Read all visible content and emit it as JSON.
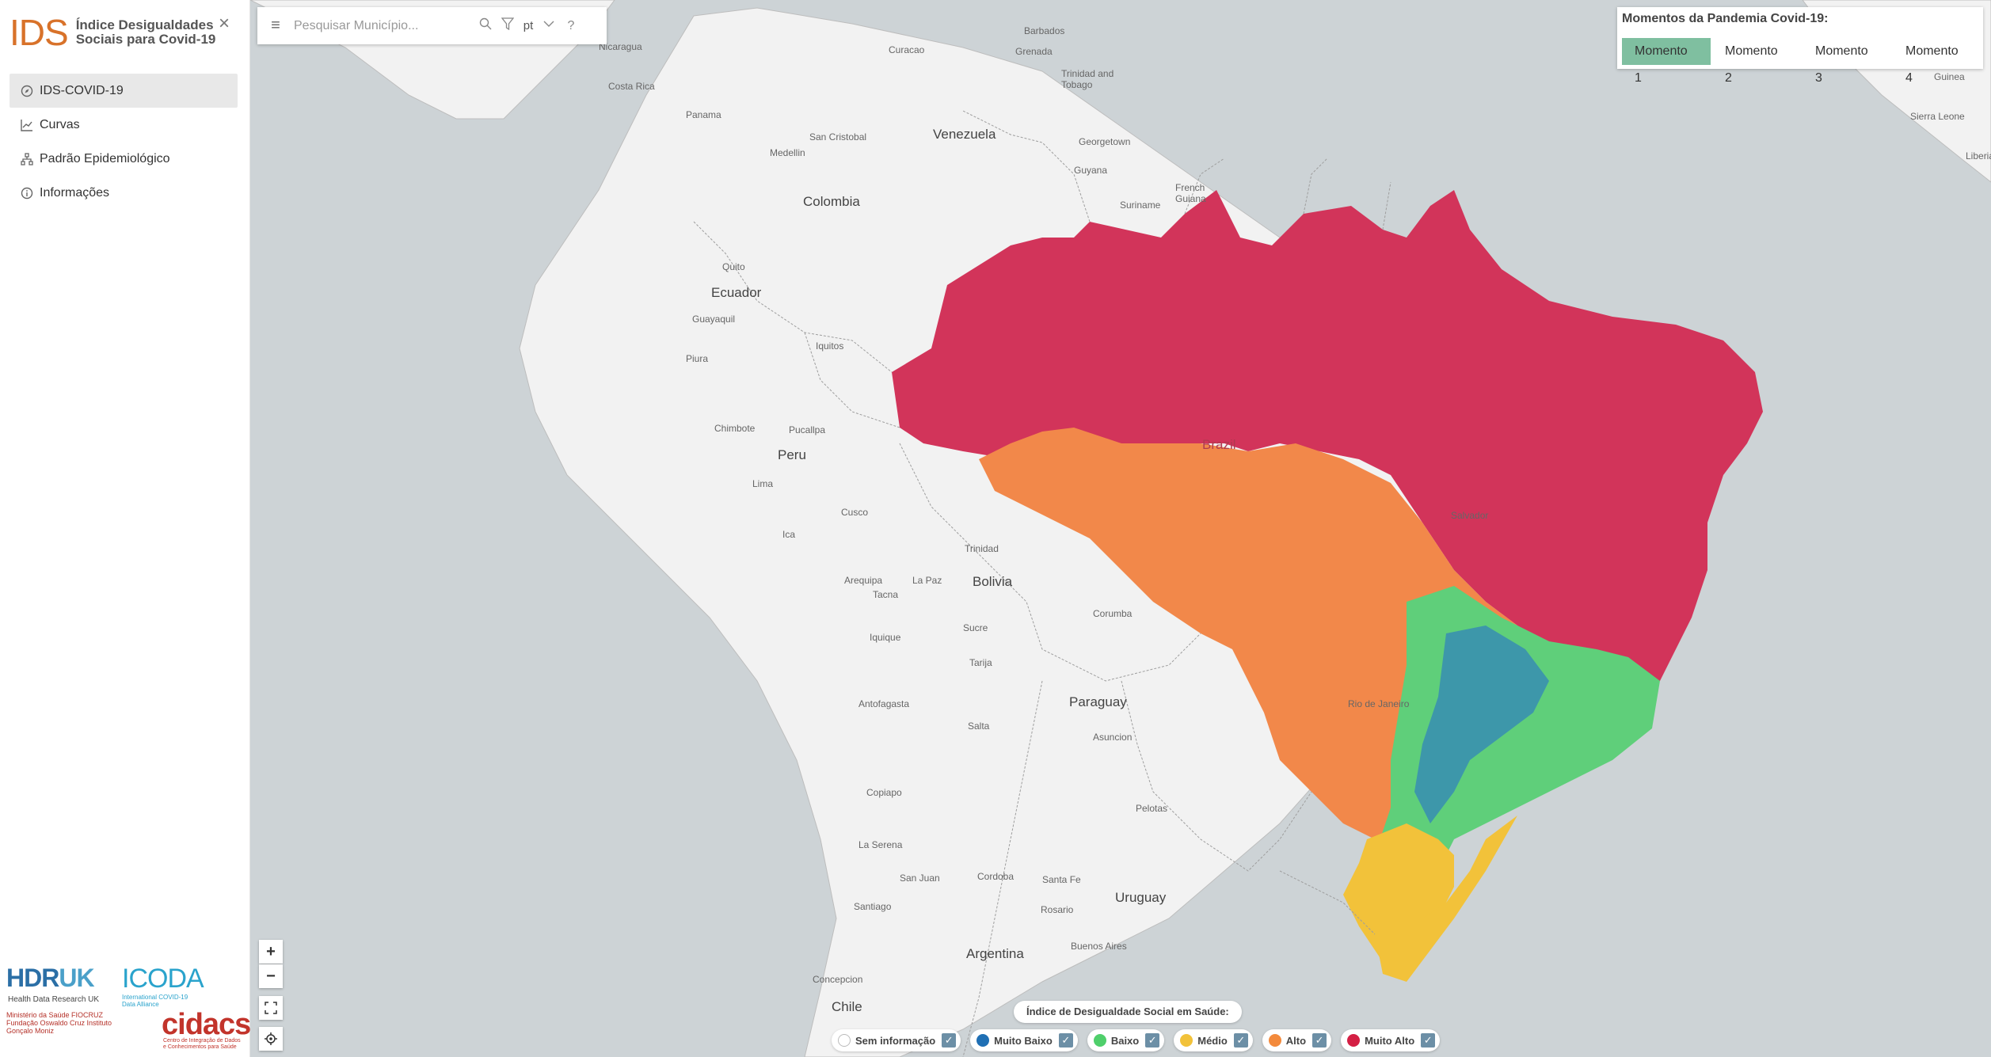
{
  "sidebar": {
    "logo_mark": "IDS",
    "logo_text_line1": "Índice Desigualdades",
    "logo_text_line2": "Sociais para Covid-19",
    "close": "×",
    "items": [
      {
        "label": "IDS-COVID-19",
        "icon": "compass-icon",
        "active": true
      },
      {
        "label": "Curvas",
        "icon": "line-chart-icon",
        "active": false
      },
      {
        "label": "Padrão Epidemiológico",
        "icon": "hierarchy-icon",
        "active": false
      },
      {
        "label": "Informações",
        "icon": "info-icon",
        "active": false
      }
    ],
    "partners": {
      "hdr": "HDR",
      "hdr_uk": "UK",
      "hdr_sub": "Health Data Research UK",
      "icoda": "ICODA",
      "icoda_sub": "International COVID-19 Data Alliance",
      "fiocruz": "Ministério da Saúde FIOCRUZ Fundação Oswaldo Cruz Instituto Gonçalo Moniz",
      "cidacs": "cidacs",
      "cidacs_sub": "Centro de Integração de Dados e Conhecimentos para Saúde"
    }
  },
  "search": {
    "placeholder": "Pesquisar Município...",
    "language": "pt",
    "icons": [
      "menu-icon",
      "search-icon",
      "filter-icon",
      "chevron-down-icon",
      "help-icon"
    ]
  },
  "moments": {
    "title": "Momentos da Pandemia Covid-19:",
    "tabs": [
      "Momento 1",
      "Momento 2",
      "Momento 3",
      "Momento 4"
    ],
    "active": "Momento 1"
  },
  "map_controls": {
    "zoom_in": "+",
    "zoom_out": "−"
  },
  "legend": {
    "title": "Índice de Desigualdade Social em Saúde:",
    "items": [
      {
        "label": "Sem informação",
        "color": "#ffffff"
      },
      {
        "label": "Muito Baixo",
        "color": "#1f6fb4"
      },
      {
        "label": "Baixo",
        "color": "#4fcf6b"
      },
      {
        "label": "Médio",
        "color": "#f2c23a"
      },
      {
        "label": "Alto",
        "color": "#f38a3c"
      },
      {
        "label": "Muito Alto",
        "color": "#d41f44"
      }
    ]
  },
  "places": {
    "major": [
      "Venezuela",
      "Colombia",
      "Ecuador",
      "Peru",
      "Bolivia",
      "Paraguay",
      "Uruguay",
      "Argentina",
      "Chile",
      "Brazil"
    ],
    "minor": [
      "Barbados",
      "Nicaragua",
      "Costa Rica",
      "Panama",
      "Curacao",
      "Grenada",
      "Trinidad and Tobago",
      "San Cristobal",
      "Medellin",
      "Georgetown",
      "Guyana",
      "Suriname",
      "French Guiana",
      "Quito",
      "Guayaquil",
      "Iquitos",
      "Piura",
      "Chimbote",
      "Pucallpa",
      "Lima",
      "Cusco",
      "Ica",
      "Arequipa",
      "Tacna",
      "Trinidad",
      "La Paz",
      "Sucre",
      "Tarija",
      "Iquique",
      "Antofagasta",
      "Salta",
      "Asuncion",
      "Copiapo",
      "Corumba",
      "La Serena",
      "San Juan",
      "Cordoba",
      "Santa Fe",
      "Rosario",
      "Santiago",
      "Buenos Aires",
      "Concepcion",
      "Guinea",
      "Sierra Leone",
      "Liberia",
      "Salvador",
      "Rio de Janeiro",
      "Pelotas"
    ]
  }
}
